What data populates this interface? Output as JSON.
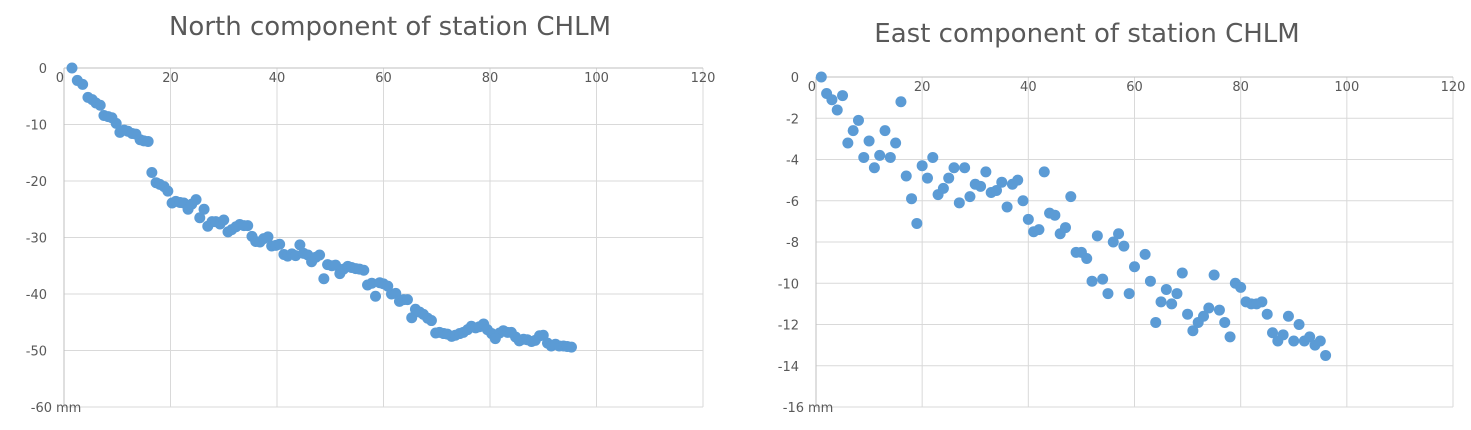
{
  "chart_data": [
    {
      "type": "scatter",
      "title": "North component of station CHLM",
      "unit_label": "mm",
      "xlim": [
        0,
        120
      ],
      "ylim": [
        -60,
        0
      ],
      "x_ticks": [
        0,
        20,
        40,
        60,
        80,
        100,
        120
      ],
      "y_ticks": [
        0,
        -10,
        -20,
        -30,
        -40,
        -50,
        -60
      ],
      "color": "#5b9bd5",
      "grid": true,
      "legend": "none",
      "points": [
        [
          1.5,
          0
        ],
        [
          2.5,
          -2.2
        ],
        [
          3.5,
          -2.9
        ],
        [
          4.5,
          -5.2
        ],
        [
          5.3,
          -5.6
        ],
        [
          6,
          -6.2
        ],
        [
          6.8,
          -6.6
        ],
        [
          7.5,
          -8.4
        ],
        [
          8.3,
          -8.6
        ],
        [
          9,
          -8.8
        ],
        [
          9.8,
          -9.8
        ],
        [
          10.5,
          -11.4
        ],
        [
          11.3,
          -11
        ],
        [
          12,
          -11.2
        ],
        [
          12.8,
          -11.6
        ],
        [
          13.5,
          -11.7
        ],
        [
          14.3,
          -12.7
        ],
        [
          15,
          -12.9
        ],
        [
          15.8,
          -13
        ],
        [
          16.5,
          -18.5
        ],
        [
          17.3,
          -20.3
        ],
        [
          18,
          -20.6
        ],
        [
          18.8,
          -21
        ],
        [
          19.5,
          -21.8
        ],
        [
          20.3,
          -23.9
        ],
        [
          21,
          -23.6
        ],
        [
          21.8,
          -23.8
        ],
        [
          22.5,
          -23.9
        ],
        [
          23.3,
          -25
        ],
        [
          24,
          -24.1
        ],
        [
          24.8,
          -23.3
        ],
        [
          25.5,
          -26.5
        ],
        [
          26.3,
          -25
        ],
        [
          27,
          -28
        ],
        [
          27.8,
          -27.2
        ],
        [
          28.5,
          -27.2
        ],
        [
          29.3,
          -27.6
        ],
        [
          30,
          -26.9
        ],
        [
          30.8,
          -29
        ],
        [
          31.5,
          -28.6
        ],
        [
          32.3,
          -28.1
        ],
        [
          33,
          -27.7
        ],
        [
          33.8,
          -27.9
        ],
        [
          34.5,
          -27.9
        ],
        [
          35.3,
          -29.8
        ],
        [
          36,
          -30.7
        ],
        [
          36.8,
          -30.8
        ],
        [
          37.5,
          -30.2
        ],
        [
          38.3,
          -29.9
        ],
        [
          39,
          -31.5
        ],
        [
          39.8,
          -31.4
        ],
        [
          40.5,
          -31.2
        ],
        [
          41.3,
          -33
        ],
        [
          42,
          -33.3
        ],
        [
          42.8,
          -32.9
        ],
        [
          43.5,
          -33.2
        ],
        [
          44.3,
          -31.3
        ],
        [
          45,
          -32.8
        ],
        [
          45.8,
          -33.1
        ],
        [
          46.5,
          -34.3
        ],
        [
          47.3,
          -33.5
        ],
        [
          48,
          -33.1
        ],
        [
          48.8,
          -37.3
        ],
        [
          49.5,
          -34.8
        ],
        [
          50.3,
          -35
        ],
        [
          51,
          -34.9
        ],
        [
          51.8,
          -36.4
        ],
        [
          52.5,
          -35.6
        ],
        [
          53.3,
          -35.1
        ],
        [
          54,
          -35.3
        ],
        [
          54.8,
          -35.5
        ],
        [
          55.5,
          -35.6
        ],
        [
          56.3,
          -35.8
        ],
        [
          57,
          -38.4
        ],
        [
          57.8,
          -38.1
        ],
        [
          58.5,
          -40.4
        ],
        [
          59.3,
          -38
        ],
        [
          60,
          -38.2
        ],
        [
          60.8,
          -38.6
        ],
        [
          61.5,
          -40
        ],
        [
          62.3,
          -39.9
        ],
        [
          63,
          -41.3
        ],
        [
          63.8,
          -41
        ],
        [
          64.5,
          -41
        ],
        [
          65.3,
          -44.2
        ],
        [
          66,
          -42.7
        ],
        [
          66.8,
          -43.2
        ],
        [
          67.5,
          -43.6
        ],
        [
          68.3,
          -44.3
        ],
        [
          69,
          -44.7
        ],
        [
          69.8,
          -46.9
        ],
        [
          70.5,
          -46.8
        ],
        [
          71.3,
          -47
        ],
        [
          72,
          -47.1
        ],
        [
          72.8,
          -47.5
        ],
        [
          73.5,
          -47.3
        ],
        [
          74.3,
          -47
        ],
        [
          75,
          -46.8
        ],
        [
          75.8,
          -46.3
        ],
        [
          76.5,
          -45.7
        ],
        [
          77.3,
          -46
        ],
        [
          78,
          -45.8
        ],
        [
          78.8,
          -45.3
        ],
        [
          79.5,
          -46.3
        ],
        [
          80.3,
          -47
        ],
        [
          81,
          -47.9
        ],
        [
          81.8,
          -46.9
        ],
        [
          82.5,
          -46.5
        ],
        [
          83.3,
          -46.8
        ],
        [
          84,
          -46.8
        ],
        [
          84.8,
          -47.6
        ],
        [
          85.5,
          -48.3
        ],
        [
          86.3,
          -48
        ],
        [
          87,
          -48.1
        ],
        [
          87.8,
          -48.4
        ],
        [
          88.5,
          -48.2
        ],
        [
          89.3,
          -47.4
        ],
        [
          90,
          -47.3
        ],
        [
          90.8,
          -48.7
        ],
        [
          91.5,
          -49.2
        ],
        [
          92.3,
          -48.9
        ],
        [
          93,
          -49.2
        ],
        [
          93.8,
          -49.2
        ],
        [
          94.5,
          -49.3
        ],
        [
          95.3,
          -49.4
        ]
      ]
    },
    {
      "type": "scatter",
      "title": "East component of station CHLM",
      "unit_label": "mm",
      "xlim": [
        0,
        120
      ],
      "ylim": [
        -16,
        0
      ],
      "x_ticks": [
        0,
        20,
        40,
        60,
        80,
        100,
        120
      ],
      "y_ticks": [
        0,
        -2,
        -4,
        -6,
        -8,
        -10,
        -12,
        -14,
        -16
      ],
      "color": "#5b9bd5",
      "grid": true,
      "legend": "none",
      "points": [
        [
          1,
          0
        ],
        [
          2,
          -0.8
        ],
        [
          3,
          -1.1
        ],
        [
          4,
          -1.6
        ],
        [
          5,
          -0.9
        ],
        [
          6,
          -3.2
        ],
        [
          7,
          -2.6
        ],
        [
          8,
          -2.1
        ],
        [
          9,
          -3.9
        ],
        [
          10,
          -3.1
        ],
        [
          11,
          -4.4
        ],
        [
          12,
          -3.8
        ],
        [
          13,
          -2.6
        ],
        [
          14,
          -3.9
        ],
        [
          15,
          -3.2
        ],
        [
          16,
          -1.2
        ],
        [
          17,
          -4.8
        ],
        [
          18,
          -5.9
        ],
        [
          19,
          -7.1
        ],
        [
          20,
          -4.3
        ],
        [
          21,
          -4.9
        ],
        [
          22,
          -3.9
        ],
        [
          23,
          -5.7
        ],
        [
          24,
          -5.4
        ],
        [
          25,
          -4.9
        ],
        [
          26,
          -4.4
        ],
        [
          27,
          -6.1
        ],
        [
          28,
          -4.4
        ],
        [
          29,
          -5.8
        ],
        [
          30,
          -5.2
        ],
        [
          31,
          -5.3
        ],
        [
          32,
          -4.6
        ],
        [
          33,
          -5.6
        ],
        [
          34,
          -5.5
        ],
        [
          35,
          -5.1
        ],
        [
          36,
          -6.3
        ],
        [
          37,
          -5.2
        ],
        [
          38,
          -5.0
        ],
        [
          39,
          -6.0
        ],
        [
          40,
          -6.9
        ],
        [
          41,
          -7.5
        ],
        [
          42,
          -7.4
        ],
        [
          43,
          -4.6
        ],
        [
          44,
          -6.6
        ],
        [
          45,
          -6.7
        ],
        [
          46,
          -7.6
        ],
        [
          47,
          -7.3
        ],
        [
          48,
          -5.8
        ],
        [
          49,
          -8.5
        ],
        [
          50,
          -8.5
        ],
        [
          51,
          -8.8
        ],
        [
          52,
          -9.9
        ],
        [
          53,
          -7.7
        ],
        [
          54,
          -9.8
        ],
        [
          55,
          -10.5
        ],
        [
          56,
          -8.0
        ],
        [
          57,
          -7.6
        ],
        [
          58,
          -8.2
        ],
        [
          59,
          -10.5
        ],
        [
          60,
          -9.2
        ],
        [
          62,
          -8.6
        ],
        [
          63,
          -9.9
        ],
        [
          64,
          -11.9
        ],
        [
          65,
          -10.9
        ],
        [
          66,
          -10.3
        ],
        [
          67,
          -11.0
        ],
        [
          68,
          -10.5
        ],
        [
          69,
          -9.5
        ],
        [
          70,
          -11.5
        ],
        [
          71,
          -12.3
        ],
        [
          72,
          -11.9
        ],
        [
          73,
          -11.6
        ],
        [
          74,
          -11.2
        ],
        [
          75,
          -9.6
        ],
        [
          76,
          -11.3
        ],
        [
          77,
          -11.9
        ],
        [
          78,
          -12.6
        ],
        [
          79,
          -10.0
        ],
        [
          80,
          -10.2
        ],
        [
          81,
          -10.9
        ],
        [
          82,
          -11.0
        ],
        [
          83,
          -11.0
        ],
        [
          84,
          -10.9
        ],
        [
          85,
          -11.5
        ],
        [
          86,
          -12.4
        ],
        [
          87,
          -12.8
        ],
        [
          88,
          -12.5
        ],
        [
          89,
          -11.6
        ],
        [
          90,
          -12.8
        ],
        [
          91,
          -12.0
        ],
        [
          92,
          -12.8
        ],
        [
          93,
          -12.6
        ],
        [
          94,
          -13.0
        ],
        [
          95,
          -12.8
        ],
        [
          96,
          -13.5
        ]
      ]
    }
  ]
}
